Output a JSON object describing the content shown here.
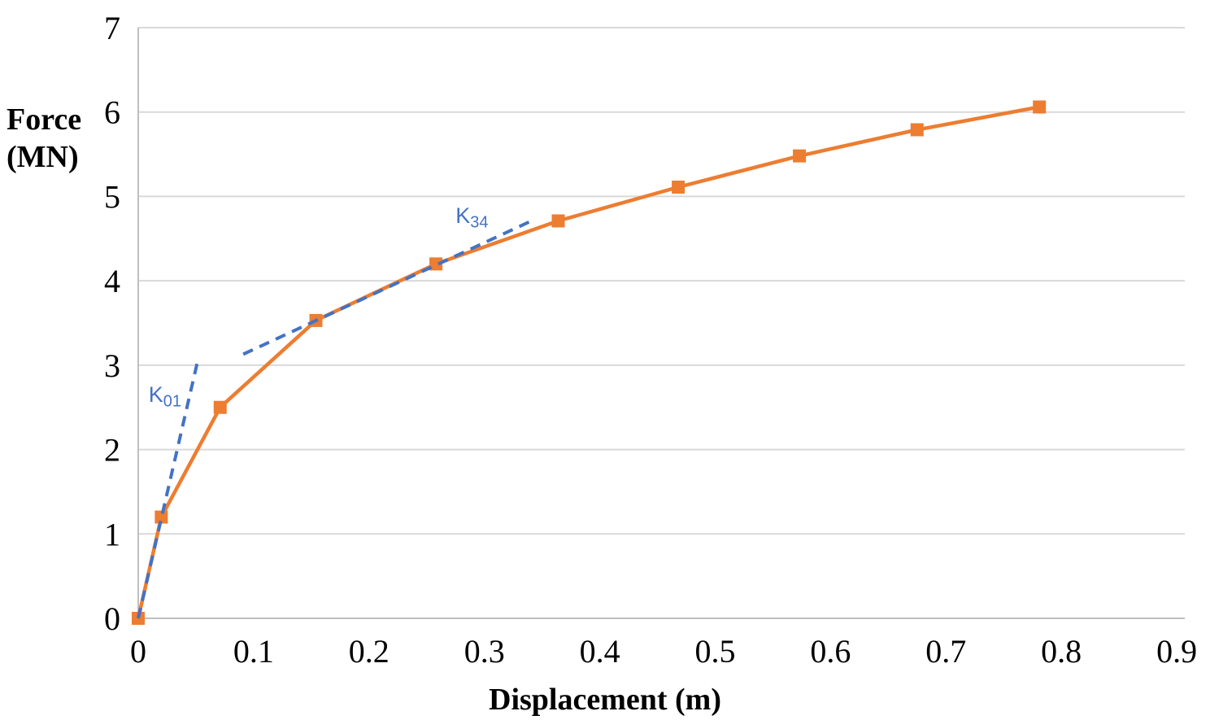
{
  "chart_data": {
    "type": "line",
    "title": "",
    "xlabel": "Displacement (m)",
    "ylabel": "Force (MN)",
    "ylabel_lines": [
      "Force",
      "(MN)"
    ],
    "xlim": [
      0,
      0.907
    ],
    "ylim": [
      0,
      7
    ],
    "x_tick_values": [
      0,
      0.1,
      0.2,
      0.3,
      0.4,
      0.5,
      0.6,
      0.7,
      0.8,
      0.9
    ],
    "x_tick_labels": [
      "0",
      "0.1",
      "0.2",
      "0.3",
      "0.4",
      "0.5",
      "0.6",
      "0.7",
      "0.8",
      "0.9"
    ],
    "y_tick_values": [
      0,
      1,
      2,
      3,
      4,
      5,
      6,
      7
    ],
    "y_tick_labels": [
      "0",
      "1",
      "2",
      "3",
      "4",
      "5",
      "6",
      "7"
    ],
    "grid": "horizontal-only",
    "legend": "none",
    "series": [
      {
        "name": "force-displacement-curve",
        "color": "#ED7D31",
        "marker": "square",
        "marker_size": 16,
        "line_width": 4.5,
        "points": [
          [
            0,
            0
          ],
          [
            0.02,
            1.2
          ],
          [
            0.071,
            2.5
          ],
          [
            0.154,
            3.53
          ],
          [
            0.258,
            4.2
          ],
          [
            0.364,
            4.71
          ],
          [
            0.468,
            5.11
          ],
          [
            0.573,
            5.48
          ],
          [
            0.675,
            5.79
          ],
          [
            0.781,
            6.06
          ]
        ]
      }
    ],
    "helper_lines": [
      {
        "name": "K01-secant",
        "color": "#4472C4",
        "style": "dashed",
        "line_width": 4,
        "points": [
          [
            0,
            0
          ],
          [
            0.051,
            3.02
          ]
        ]
      },
      {
        "name": "K34-secant",
        "color": "#4472C4",
        "style": "dashed",
        "line_width": 4,
        "points": [
          [
            0.091,
            3.13
          ],
          [
            0.344,
            4.73
          ]
        ]
      }
    ],
    "annotations": [
      {
        "name": "K01-label",
        "main": "K",
        "sub": "01",
        "x": 0.009,
        "y": 2.78,
        "color": "#4472C4"
      },
      {
        "name": "K34-label",
        "main": "K",
        "sub": "34",
        "x": 0.275,
        "y": 4.9,
        "color": "#4472C4"
      }
    ],
    "colors": {
      "gridline": "#D9D9D9",
      "axis_line": "#BFBFBF",
      "tick_text": "#000000"
    }
  }
}
